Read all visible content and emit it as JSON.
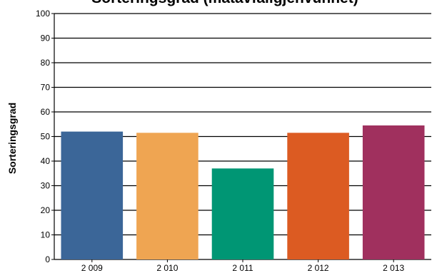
{
  "chart_data": {
    "type": "bar",
    "title": "Sorteringsgrad (matavfallgjenvunnet)",
    "xlabel": "",
    "ylabel": "Sorteringsgrad",
    "categories": [
      "2 009",
      "2 010",
      "2 011",
      "2 012",
      "2 013"
    ],
    "values": [
      52,
      51.5,
      37,
      51.5,
      54.5
    ],
    "colors": [
      "#3b6698",
      "#efa552",
      "#009674",
      "#dc5b22",
      "#a0305e"
    ],
    "ylim": [
      0,
      100
    ],
    "yticks": [
      "0",
      "10",
      "20",
      "30",
      "40",
      "50",
      "60",
      "70",
      "80",
      "90",
      "100"
    ],
    "grid": true,
    "legend": "none"
  }
}
